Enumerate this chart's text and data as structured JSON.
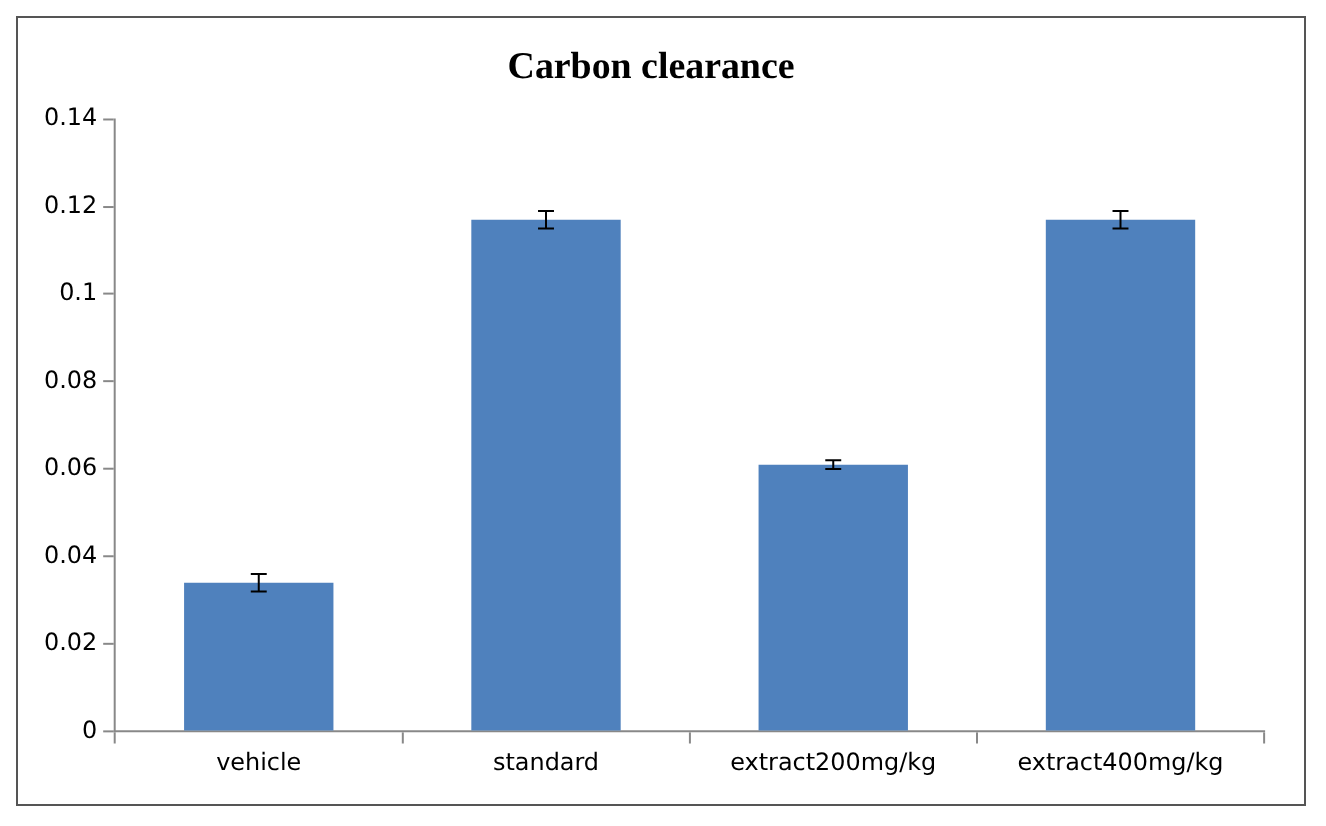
{
  "chart_data": {
    "type": "bar",
    "title": "Carbon clearance",
    "categories": [
      "vehicle",
      "standard",
      "extract200mg/kg",
      "extract400mg/kg"
    ],
    "values": [
      0.034,
      0.117,
      0.061,
      0.117
    ],
    "errors": [
      0.002,
      0.002,
      0.001,
      0.002
    ],
    "color": "#4f81bd",
    "ylim": [
      0,
      0.14
    ],
    "yticks": [
      0,
      0.02,
      0.04,
      0.06,
      0.08,
      0.1,
      0.12,
      0.14
    ],
    "grid": false,
    "legend": false
  }
}
